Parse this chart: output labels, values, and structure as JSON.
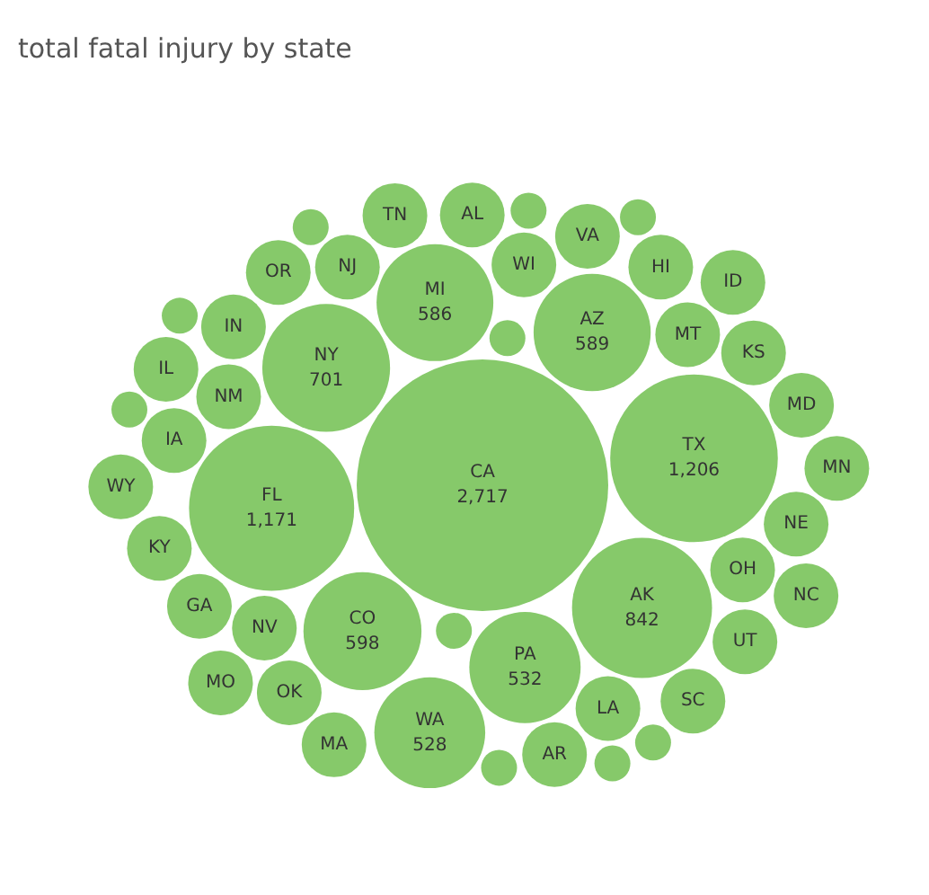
{
  "chart_data": {
    "type": "other",
    "title": "total fatal injury by state",
    "color": "#86c96a",
    "categories": [
      "CA",
      "TX",
      "FL",
      "AK",
      "NY",
      "CO",
      "AZ",
      "MI",
      "PA",
      "WA",
      "WI",
      "MT",
      "NM",
      "NV",
      "OH",
      "NJ",
      "LA",
      "IA",
      "IN",
      "KS",
      "OK",
      "VA",
      "HI",
      "NE",
      "GA",
      "UT",
      "AL",
      "OR",
      "AR",
      "KY",
      "MD",
      "SC",
      "TN",
      "MA",
      "IL",
      "ID",
      "NC",
      "MO",
      "MN",
      "WY",
      null,
      null,
      null,
      null,
      null,
      null,
      null,
      null,
      null,
      null
    ],
    "value_labels": [
      "2,717",
      "1,206",
      "1,171",
      "842",
      "701",
      "598",
      "589",
      "586",
      "532",
      "528",
      null,
      null,
      null,
      null,
      null,
      null,
      null,
      null,
      null,
      null,
      null,
      null,
      null,
      null,
      null,
      null,
      null,
      null,
      null,
      null,
      null,
      null,
      null,
      null,
      null,
      null,
      null,
      null,
      null,
      null,
      null,
      null,
      null,
      null,
      null,
      null,
      null,
      null,
      null,
      null
    ],
    "values": [
      2717,
      1206,
      1171,
      842,
      701,
      598,
      589,
      586,
      532,
      528,
      null,
      null,
      null,
      null,
      null,
      null,
      null,
      null,
      null,
      null,
      null,
      null,
      null,
      null,
      null,
      null,
      null,
      null,
      null,
      null,
      null,
      null,
      null,
      null,
      null,
      null,
      null,
      null,
      null,
      null,
      null,
      null,
      null,
      null,
      null,
      null,
      null,
      null,
      null,
      null
    ]
  }
}
